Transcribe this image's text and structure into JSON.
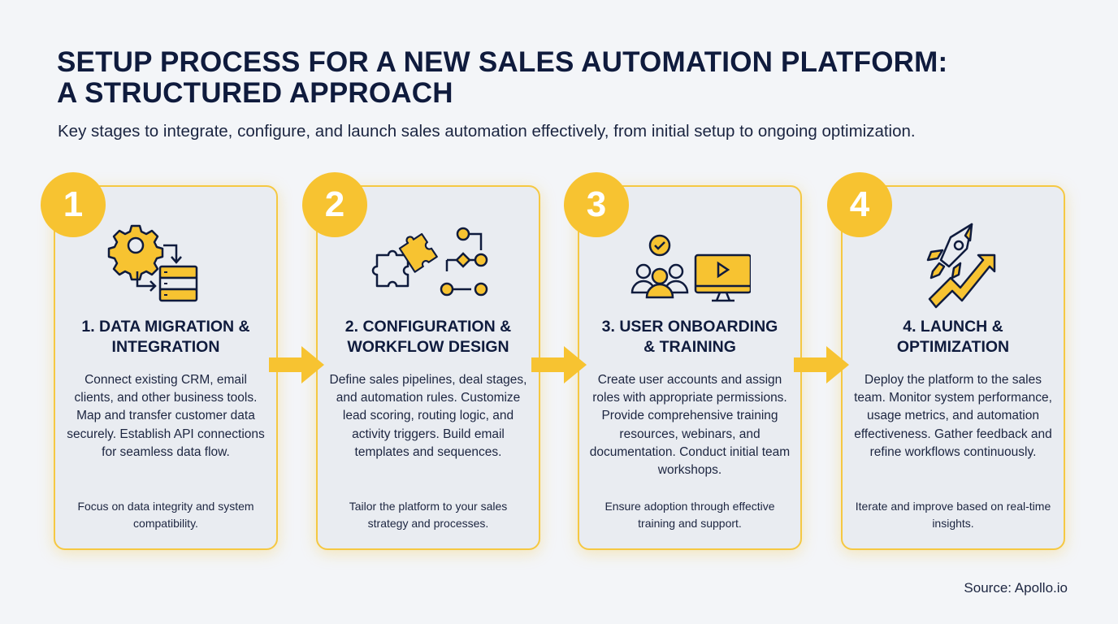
{
  "header": {
    "title_line1": "SETUP PROCESS FOR A NEW SALES AUTOMATION PLATFORM:",
    "title_line2": "A STRUCTURED APPROACH",
    "subtitle": "Key stages to integrate, configure, and launch sales automation effectively, from initial setup to ongoing optimization."
  },
  "colors": {
    "accent": "#f7c331",
    "text": "#0f1b3d",
    "card_bg": "#e9ecf1",
    "background": "#f3f5f8"
  },
  "steps": [
    {
      "number": "1",
      "icon": "gear-database-icon",
      "heading_line1": "1. DATA MIGRATION &",
      "heading_line2": "INTEGRATION",
      "body": "Connect existing CRM, email clients, and other business tools. Map and transfer customer data securely. Establish API connections for seamless data flow.",
      "note": "Focus on data integrity and system compatibility."
    },
    {
      "number": "2",
      "icon": "puzzle-workflow-icon",
      "heading_line1": "2. CONFIGURATION &",
      "heading_line2": "WORKFLOW DESIGN",
      "body": "Define sales pipelines, deal stages, and automation rules. Customize lead scoring, routing logic, and activity triggers. Build email templates and sequences.",
      "note": "Tailor the platform to your sales strategy and processes."
    },
    {
      "number": "3",
      "icon": "team-video-icon",
      "heading_line1": "3. USER ONBOARDING",
      "heading_line2": "& TRAINING",
      "body": "Create user accounts and assign roles with appropriate permissions. Provide comprehensive training resources, webinars, and documentation. Conduct initial team workshops.",
      "note": "Ensure adoption through effective training and support."
    },
    {
      "number": "4",
      "icon": "rocket-growth-icon",
      "heading_line1": "4. LAUNCH &",
      "heading_line2": "OPTIMIZATION",
      "body": "Deploy the platform to the sales team. Monitor system performance, usage metrics, and automation effectiveness. Gather feedback and refine workflows continuously.",
      "note": "Iterate and improve based on real-time insights."
    }
  ],
  "footer": {
    "source": "Source: Apollo.io"
  }
}
